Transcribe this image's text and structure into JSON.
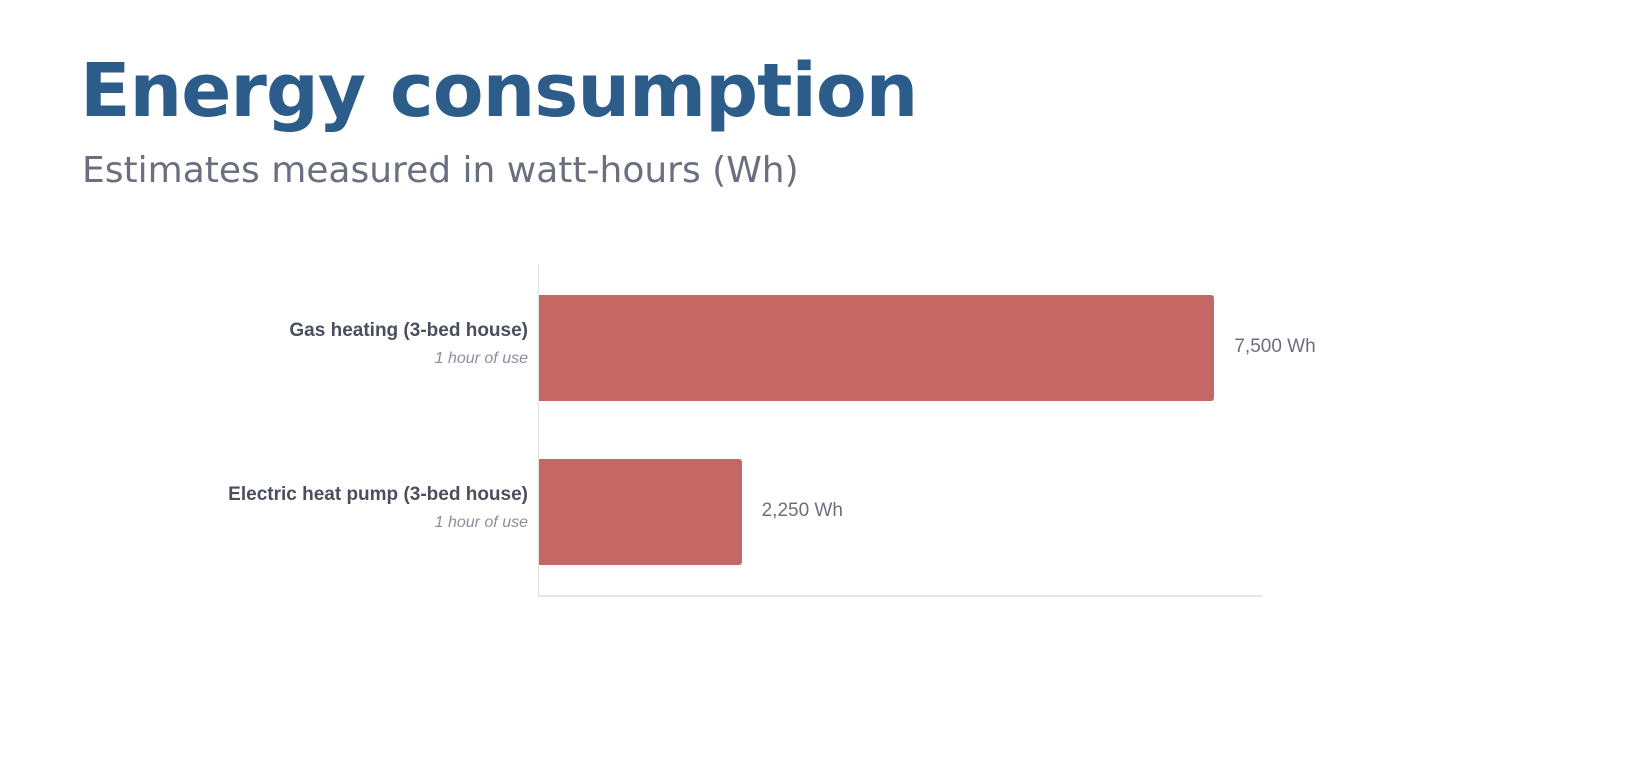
{
  "chart_data": {
    "type": "bar",
    "orientation": "horizontal",
    "title": "Energy consumption",
    "subtitle": "Estimates measured in watt-hours (Wh)",
    "categories": [
      {
        "label": "Gas heating (3-bed house)",
        "sublabel": "1 hour of use",
        "value": 7500,
        "value_label": "7,500 Wh"
      },
      {
        "label": "Electric heat pump (3-bed house)",
        "sublabel": "1 hour of use",
        "value": 2250,
        "value_label": "2,250 Wh"
      }
    ],
    "xlim": [
      0,
      8040
    ],
    "grid": false,
    "bar_color": "#c56865"
  }
}
